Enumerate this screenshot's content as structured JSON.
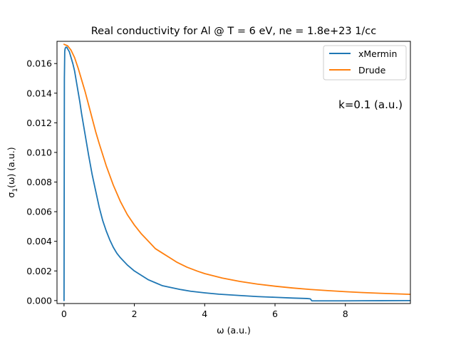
{
  "chart_data": {
    "type": "line",
    "title": "Real conductivity for Al @ T = 6 eV, ne = 1.8e+23 1/cc",
    "xlabel": "ω (a.u.)",
    "ylabel_main": "σ",
    "ylabel_sub": "1",
    "ylabel_rest": "(ω) (a.u.)",
    "xlim": [
      -0.2,
      9.85
    ],
    "ylim": [
      -0.0002,
      0.0175
    ],
    "xticks": [
      0,
      2,
      4,
      6,
      8
    ],
    "xtick_labels": [
      "0",
      "2",
      "4",
      "6",
      "8"
    ],
    "yticks": [
      0.0,
      0.002,
      0.004,
      0.006,
      0.008,
      0.01,
      0.012,
      0.014,
      0.016
    ],
    "ytick_labels": [
      "0.000",
      "0.002",
      "0.004",
      "0.006",
      "0.008",
      "0.010",
      "0.012",
      "0.014",
      "0.016"
    ],
    "grid": false,
    "legend_position": "top-right",
    "annotation": "k=0.1 (a.u.)",
    "series": [
      {
        "name": "xMermin",
        "color": "#1f77b4",
        "x": [
          0,
          0.01,
          0.02,
          0.03,
          0.05,
          0.08,
          0.1,
          0.15,
          0.2,
          0.25,
          0.3,
          0.35,
          0.4,
          0.45,
          0.5,
          0.6,
          0.7,
          0.8,
          0.9,
          1.0,
          1.1,
          1.2,
          1.3,
          1.4,
          1.5,
          1.6,
          1.8,
          2.0,
          2.2,
          2.4,
          2.6,
          2.8,
          3.0,
          3.3,
          3.6,
          4.0,
          4.4,
          5.0,
          5.5,
          6.0,
          6.5,
          6.9,
          7.0,
          7.05,
          7.5,
          8.0,
          9.0,
          9.85
        ],
        "y": [
          0.0,
          0.015,
          0.0168,
          0.017,
          0.0171,
          0.0171,
          0.017,
          0.0168,
          0.0164,
          0.016,
          0.0155,
          0.0148,
          0.0141,
          0.0134,
          0.0126,
          0.0112,
          0.0098,
          0.0085,
          0.0074,
          0.0063,
          0.0054,
          0.0047,
          0.0041,
          0.0036,
          0.0032,
          0.0029,
          0.0024,
          0.002,
          0.0017,
          0.0014,
          0.0012,
          0.001,
          0.0009,
          0.00075,
          0.00063,
          0.00052,
          0.00043,
          0.00034,
          0.00027,
          0.00022,
          0.00017,
          0.00014,
          0.00012,
          -2e-05,
          -2e-05,
          -2e-05,
          -1e-05,
          0.0
        ]
      },
      {
        "name": "Drude",
        "color": "#ff7f0e",
        "x": [
          0,
          0.1,
          0.2,
          0.3,
          0.4,
          0.5,
          0.6,
          0.7,
          0.8,
          0.9,
          1.0,
          1.2,
          1.4,
          1.6,
          1.8,
          2.0,
          2.2,
          2.4,
          2.6,
          2.8,
          3.0,
          3.2,
          3.5,
          3.8,
          4.0,
          4.5,
          5.0,
          5.5,
          6.0,
          6.5,
          7.0,
          7.5,
          8.0,
          8.5,
          9.0,
          9.5,
          9.85
        ],
        "y": [
          0.0173,
          0.0172,
          0.0169,
          0.0164,
          0.0157,
          0.0149,
          0.0141,
          0.0132,
          0.0123,
          0.0114,
          0.0106,
          0.0091,
          0.0078,
          0.0067,
          0.0058,
          0.0051,
          0.0045,
          0.004,
          0.0035,
          0.0032,
          0.0029,
          0.0026,
          0.00225,
          0.00198,
          0.00182,
          0.00152,
          0.00129,
          0.00111,
          0.00097,
          0.00085,
          0.00075,
          0.00067,
          0.0006,
          0.00054,
          0.00049,
          0.00045,
          0.00042
        ]
      }
    ]
  }
}
